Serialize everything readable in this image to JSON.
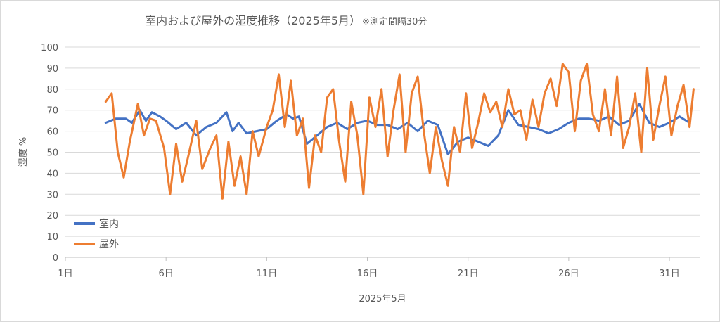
{
  "chart_data": {
    "type": "line",
    "title": "室内および屋外の湿度推移（2025年5月）",
    "title_note": "※測定間隔30分",
    "xlabel": "2025年5月",
    "ylabel": "湿度 %",
    "ylim": [
      0,
      100
    ],
    "yticks": [
      0,
      10,
      20,
      30,
      40,
      50,
      60,
      70,
      80,
      90,
      100
    ],
    "xlim": [
      1,
      32.5
    ],
    "xticks": [
      {
        "day": 1,
        "label": "1日"
      },
      {
        "day": 6,
        "label": "6日"
      },
      {
        "day": 11,
        "label": "11日"
      },
      {
        "day": 16,
        "label": "16日"
      },
      {
        "day": 21,
        "label": "21日"
      },
      {
        "day": 26,
        "label": "26日"
      },
      {
        "day": 31,
        "label": "31日"
      }
    ],
    "grid": "horizontal",
    "legend_position": "left",
    "series": [
      {
        "name": "室内",
        "color": "#4472C4",
        "x": [
          3.0,
          3.5,
          4.0,
          4.3,
          4.7,
          5.0,
          5.3,
          5.7,
          6.0,
          6.5,
          7.0,
          7.5,
          8.0,
          8.5,
          9.0,
          9.3,
          9.6,
          10.0,
          10.5,
          11.0,
          11.5,
          12.0,
          12.3,
          12.6,
          13.0,
          13.5,
          14.0,
          14.5,
          15.0,
          15.5,
          16.0,
          16.5,
          17.0,
          17.5,
          18.0,
          18.5,
          19.0,
          19.5,
          20.0,
          20.5,
          21.0,
          21.5,
          22.0,
          22.5,
          23.0,
          23.5,
          24.0,
          24.5,
          25.0,
          25.5,
          26.0,
          26.5,
          27.0,
          27.5,
          28.0,
          28.5,
          29.0,
          29.5,
          30.0,
          30.5,
          31.0,
          31.5,
          32.0
        ],
        "values": [
          64,
          66,
          66,
          64,
          70,
          65,
          69,
          67,
          65,
          61,
          64,
          58,
          62,
          64,
          69,
          60,
          64,
          59,
          60,
          61,
          65,
          68,
          66,
          67,
          54,
          58,
          62,
          64,
          61,
          64,
          65,
          63,
          63,
          61,
          64,
          60,
          65,
          63,
          49,
          55,
          57,
          55,
          53,
          58,
          70,
          63,
          62,
          61,
          59,
          61,
          64,
          66,
          66,
          65,
          67,
          63,
          65,
          73,
          64,
          62,
          64,
          67,
          64
        ]
      },
      {
        "name": "屋外",
        "color": "#ED7D31",
        "x": [
          3.0,
          3.3,
          3.6,
          3.9,
          4.2,
          4.6,
          4.9,
          5.2,
          5.5,
          5.9,
          6.2,
          6.5,
          6.8,
          7.1,
          7.5,
          7.8,
          8.2,
          8.5,
          8.8,
          9.1,
          9.4,
          9.7,
          10.0,
          10.3,
          10.6,
          11.0,
          11.3,
          11.6,
          11.9,
          12.2,
          12.5,
          12.8,
          13.1,
          13.4,
          13.7,
          14.0,
          14.3,
          14.6,
          14.9,
          15.2,
          15.5,
          15.8,
          16.1,
          16.4,
          16.7,
          17.0,
          17.3,
          17.6,
          17.9,
          18.2,
          18.5,
          18.8,
          19.1,
          19.4,
          19.7,
          20.0,
          20.3,
          20.6,
          20.9,
          21.2,
          21.5,
          21.8,
          22.1,
          22.4,
          22.7,
          23.0,
          23.3,
          23.6,
          23.9,
          24.2,
          24.5,
          24.8,
          25.1,
          25.4,
          25.7,
          26.0,
          26.3,
          26.6,
          26.9,
          27.2,
          27.5,
          27.8,
          28.1,
          28.4,
          28.7,
          29.0,
          29.3,
          29.6,
          29.9,
          30.2,
          30.5,
          30.8,
          31.1,
          31.4,
          31.7,
          32.0,
          32.2
        ],
        "values": [
          74,
          78,
          50,
          38,
          55,
          73,
          58,
          66,
          65,
          52,
          30,
          54,
          36,
          48,
          65,
          42,
          52,
          58,
          28,
          55,
          34,
          48,
          30,
          60,
          48,
          62,
          70,
          87,
          62,
          84,
          58,
          66,
          33,
          58,
          50,
          76,
          80,
          55,
          36,
          74,
          58,
          30,
          76,
          62,
          80,
          48,
          70,
          87,
          50,
          78,
          86,
          60,
          40,
          62,
          46,
          34,
          62,
          50,
          78,
          52,
          64,
          78,
          69,
          74,
          62,
          80,
          68,
          70,
          56,
          75,
          62,
          78,
          85,
          72,
          92,
          88,
          60,
          84,
          92,
          68,
          60,
          80,
          58,
          86,
          52,
          62,
          78,
          50,
          90,
          56,
          72,
          86,
          58,
          72,
          82,
          62,
          80
        ]
      }
    ]
  }
}
